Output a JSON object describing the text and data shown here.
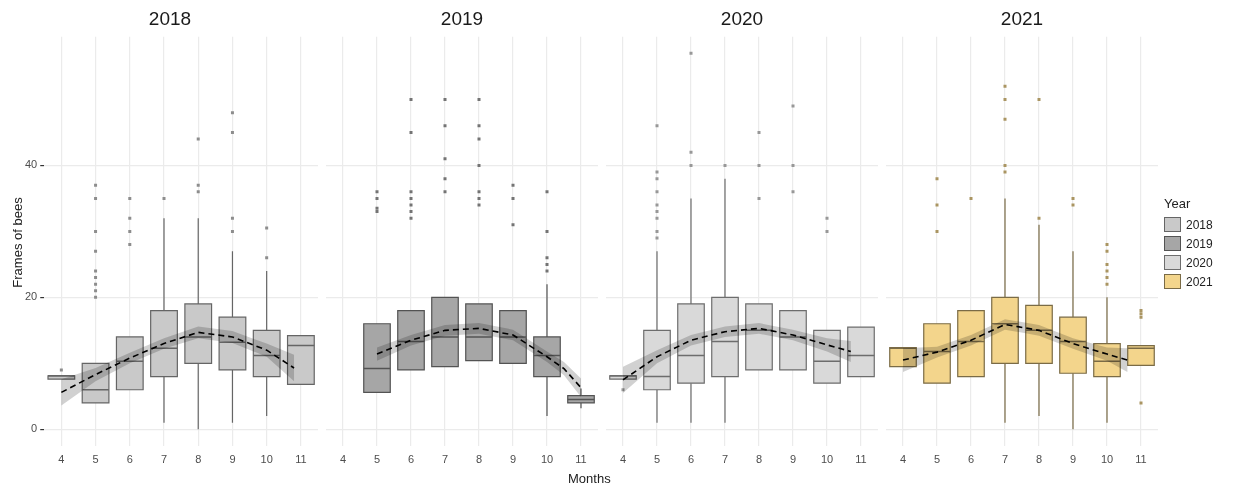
{
  "chart_data": [
    {
      "type": "box",
      "title": "2018",
      "ylabel": "Frames of bees",
      "xlim": [
        3.5,
        11.5
      ],
      "xticks": [
        4,
        5,
        6,
        7,
        8,
        9,
        10,
        11
      ],
      "ylim": [
        -2.5,
        59.5
      ],
      "yticks": [
        0,
        20,
        40
      ],
      "grid": true,
      "series": [
        {
          "type": "box",
          "color": "#c9c9c9",
          "x": [
            4,
            5,
            6,
            7,
            8,
            9,
            10,
            11
          ],
          "boxes": [
            {
              "low": 7.6,
              "q1": 7.6,
              "median": 8.1,
              "q3": 8.1,
              "high": 8.1,
              "outliers": [
                9
              ]
            },
            {
              "low": 4,
              "q1": 4,
              "median": 6,
              "q3": 10,
              "high": 10,
              "outliers": [
                37,
                35,
                30,
                27,
                24,
                23,
                22,
                21,
                20
              ]
            },
            {
              "low": 6,
              "q1": 6,
              "median": 10.3,
              "q3": 14,
              "high": 14,
              "outliers": [
                35,
                32,
                30,
                28
              ]
            },
            {
              "low": 1,
              "q1": 8,
              "median": 12.3,
              "q3": 18,
              "high": 32,
              "outliers": [
                35
              ]
            },
            {
              "low": 0,
              "q1": 10,
              "median": 14,
              "q3": 19,
              "high": 32,
              "outliers": [
                44,
                37,
                36
              ]
            },
            {
              "low": 1,
              "q1": 9,
              "median": 13.2,
              "q3": 17,
              "high": 27,
              "outliers": [
                48,
                45,
                32,
                30
              ]
            },
            {
              "low": 2,
              "q1": 8,
              "median": 11.2,
              "q3": 15,
              "high": 24,
              "outliers": [
                30.5,
                26
              ]
            },
            {
              "low": 6.8,
              "q1": 6.8,
              "median": 12.7,
              "q3": 14.2,
              "high": 14.2
            }
          ]
        },
        {
          "type": "line",
          "color": "#000000",
          "line_style": "dashed",
          "x": [
            4,
            5,
            6,
            7,
            8,
            9,
            10,
            10.8
          ],
          "values": [
            5.6,
            8.3,
            10.8,
            13,
            14.7,
            14,
            12,
            9.3
          ],
          "lower": [
            3.6,
            7.3,
            10,
            12.2,
            13.8,
            13.1,
            11,
            7.3
          ],
          "upper": [
            7.6,
            9.3,
            11.6,
            13.8,
            15.6,
            14.9,
            13,
            11.3
          ]
        }
      ]
    },
    {
      "type": "box",
      "title": "2019",
      "xlabel": "Months",
      "xlim": [
        3.5,
        11.5
      ],
      "xticks": [
        4,
        5,
        6,
        7,
        8,
        9,
        10,
        11
      ],
      "ylim": [
        -2.5,
        59.5
      ],
      "yticks": [
        0,
        20,
        40
      ],
      "grid": true,
      "tick_labels": "x",
      "series": [
        {
          "type": "box",
          "color": "#a6a6a6",
          "x": [
            5,
            6,
            7,
            8,
            9,
            10,
            11
          ],
          "boxes": [
            {
              "low": 5.6,
              "q1": 5.6,
              "median": 9.2,
              "q3": 16,
              "high": 16,
              "outliers": [
                36,
                35,
                33.5,
                33
              ]
            },
            {
              "low": 9,
              "q1": 9,
              "median": 13.3,
              "q3": 18,
              "high": 18,
              "outliers": [
                50,
                45,
                36,
                35,
                34,
                33,
                32
              ]
            },
            {
              "low": 9.5,
              "q1": 9.5,
              "median": 14,
              "q3": 20,
              "high": 20,
              "outliers": [
                50,
                46,
                41,
                38,
                36
              ]
            },
            {
              "low": 10.4,
              "q1": 10.4,
              "median": 14,
              "q3": 19,
              "high": 19,
              "outliers": [
                50,
                46,
                44,
                40,
                36,
                35,
                34
              ]
            },
            {
              "low": 10,
              "q1": 10,
              "median": 14,
              "q3": 18,
              "high": 18,
              "outliers": [
                37,
                35,
                31
              ]
            },
            {
              "low": 2,
              "q1": 8,
              "median": 11.2,
              "q3": 14,
              "high": 22,
              "outliers": [
                36,
                30,
                26,
                25,
                24
              ]
            },
            {
              "low": 3.2,
              "q1": 4,
              "median": 4.5,
              "q3": 5.1,
              "high": 6.2
            }
          ]
        },
        {
          "type": "line",
          "color": "#000000",
          "line_style": "dashed",
          "x": [
            5,
            6,
            7,
            8,
            9,
            10,
            10.5,
            11
          ],
          "values": [
            11.4,
            13.5,
            15,
            15.3,
            14.3,
            11,
            9.2,
            6.3
          ],
          "lower": [
            10.4,
            12.7,
            14.2,
            14.5,
            13.5,
            10.2,
            8.2,
            4.9
          ],
          "upper": [
            12.4,
            14.3,
            15.8,
            16.1,
            15.1,
            11.8,
            10.2,
            7.7
          ]
        }
      ]
    },
    {
      "type": "box",
      "title": "2020",
      "xlim": [
        3.5,
        11.5
      ],
      "xticks": [
        4,
        5,
        6,
        7,
        8,
        9,
        10,
        11
      ],
      "ylim": [
        -2.5,
        59.5
      ],
      "yticks": [
        0,
        20,
        40
      ],
      "grid": true,
      "tick_labels": "x",
      "series": [
        {
          "type": "box",
          "color": "#d9d9d9",
          "x": [
            4,
            5,
            6,
            7,
            8,
            9,
            10,
            11
          ],
          "boxes": [
            {
              "low": 7.6,
              "q1": 7.6,
              "median": 8.1,
              "q3": 8.1,
              "high": 8.1,
              "outliers": [
                6
              ]
            },
            {
              "low": 1,
              "q1": 6,
              "median": 8,
              "q3": 15,
              "high": 27,
              "outliers": [
                46,
                39,
                38,
                36,
                34,
                33,
                32,
                30,
                29
              ]
            },
            {
              "low": 1,
              "q1": 7,
              "median": 11.2,
              "q3": 19,
              "high": 35,
              "outliers": [
                57,
                42,
                40
              ]
            },
            {
              "low": 1,
              "q1": 8,
              "median": 13.3,
              "q3": 20,
              "high": 38,
              "outliers": [
                40
              ]
            },
            {
              "low": 9,
              "q1": 9,
              "median": 15,
              "q3": 19,
              "high": 19,
              "outliers": [
                45,
                40,
                35
              ]
            },
            {
              "low": 9,
              "q1": 9,
              "median": 14,
              "q3": 18,
              "high": 18,
              "outliers": [
                49,
                40,
                36
              ]
            },
            {
              "low": 7,
              "q1": 7,
              "median": 10.3,
              "q3": 15,
              "high": 15,
              "outliers": [
                32,
                30
              ]
            },
            {
              "low": 8,
              "q1": 8,
              "median": 11.2,
              "q3": 15.5,
              "high": 15.5
            }
          ]
        },
        {
          "type": "line",
          "color": "#000000",
          "line_style": "dashed",
          "x": [
            4,
            5,
            6,
            7,
            8,
            9,
            10,
            10.7
          ],
          "values": [
            7.5,
            11,
            13.5,
            14.8,
            15.3,
            14.3,
            12.8,
            11.8
          ],
          "lower": [
            5.5,
            10,
            12.7,
            14,
            14.5,
            13.5,
            11.8,
            10.2
          ],
          "upper": [
            9.5,
            12,
            14.3,
            15.6,
            16.1,
            15.1,
            13.8,
            13.4
          ]
        }
      ]
    },
    {
      "type": "box",
      "title": "2021",
      "legend": "right",
      "legend_title": "Year",
      "xlim": [
        3.5,
        11.5
      ],
      "xticks": [
        4,
        5,
        6,
        7,
        8,
        9,
        10,
        11
      ],
      "ylim": [
        -2.5,
        59.5
      ],
      "yticks": [
        0,
        20,
        40
      ],
      "grid": true,
      "tick_labels": "x",
      "series": [
        {
          "type": "box",
          "name": "2018",
          "color": "#c9c9c9"
        },
        {
          "type": "box",
          "name": "2019",
          "color": "#a6a6a6"
        },
        {
          "type": "box",
          "name": "2020",
          "color": "#d9d9d9"
        },
        {
          "type": "box",
          "name": "2021",
          "color": "#f3d58c",
          "x": [
            4,
            5,
            6,
            7,
            8,
            9,
            10,
            11
          ],
          "boxes": [
            {
              "low": 9.5,
              "q1": 9.5,
              "median": 12.3,
              "q3": 12.4,
              "high": 12.4
            },
            {
              "low": 7,
              "q1": 7,
              "median": 11.8,
              "q3": 16,
              "high": 16,
              "outliers": [
                38,
                34,
                30
              ]
            },
            {
              "low": 8,
              "q1": 8,
              "median": 13.3,
              "q3": 18,
              "high": 18,
              "outliers": [
                35
              ]
            },
            {
              "low": 1,
              "q1": 10,
              "median": 16,
              "q3": 20,
              "high": 35,
              "outliers": [
                52,
                50,
                47,
                40,
                39
              ]
            },
            {
              "low": 2,
              "q1": 10,
              "median": 15,
              "q3": 18.8,
              "high": 31,
              "outliers": [
                50,
                32
              ]
            },
            {
              "low": 0,
              "q1": 8.5,
              "median": 13.3,
              "q3": 17,
              "high": 27,
              "outliers": [
                35,
                34
              ]
            },
            {
              "low": 1,
              "q1": 8,
              "median": 10.3,
              "q3": 13,
              "high": 20,
              "outliers": [
                28,
                27,
                25,
                24,
                23,
                22
              ]
            },
            {
              "low": 9.7,
              "q1": 9.7,
              "median": 12.3,
              "q3": 12.7,
              "high": 12.7,
              "outliers": [
                18,
                17.5,
                17,
                4
              ]
            }
          ]
        },
        {
          "type": "line",
          "color": "#000000",
          "line_style": "dashed",
          "x": [
            4,
            5,
            6,
            7,
            8,
            9,
            10,
            10.6
          ],
          "values": [
            10.5,
            11.7,
            13.5,
            15.9,
            15,
            13,
            11.4,
            10.5
          ],
          "lower": [
            8.7,
            10.9,
            12.7,
            15.1,
            14.2,
            12.2,
            10.4,
            8.7
          ],
          "upper": [
            12.3,
            12.5,
            14.3,
            16.7,
            15.8,
            13.8,
            12.4,
            12.3
          ]
        }
      ]
    }
  ]
}
